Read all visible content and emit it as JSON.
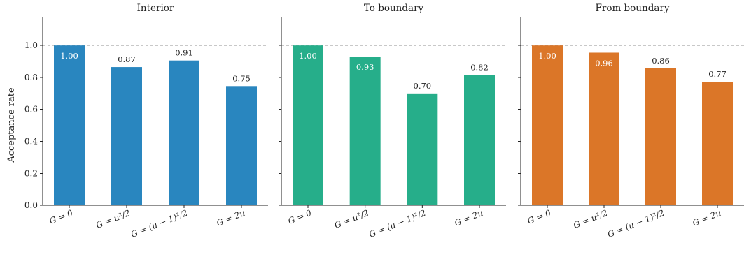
{
  "figure": {
    "ylabel": "Acceptance rate",
    "yticks": [
      "0.0",
      "0.2",
      "0.4",
      "0.6",
      "0.8",
      "1.0"
    ]
  },
  "chart_data": [
    {
      "type": "bar",
      "title": "Interior",
      "categories": [
        "G = 0",
        "G = u²/2",
        "G = (u − 1)²/2",
        "G = 2u"
      ],
      "values": [
        1.0,
        0.865,
        0.906,
        0.746
      ],
      "labels": [
        "1.00",
        "0.87",
        "0.91",
        "0.75"
      ],
      "label_inside": [
        true,
        false,
        false,
        false
      ],
      "color": "#2986bf",
      "ylim": [
        0,
        1.18
      ],
      "reference_line": 1.0
    },
    {
      "type": "bar",
      "title": "To boundary",
      "categories": [
        "G = 0",
        "G = u²/2",
        "G = (u − 1)²/2",
        "G = 2u"
      ],
      "values": [
        1.0,
        0.93,
        0.7,
        0.815
      ],
      "labels": [
        "1.00",
        "0.93",
        "0.70",
        "0.82"
      ],
      "label_inside": [
        true,
        true,
        false,
        false
      ],
      "color": "#26ae8a",
      "ylim": [
        0,
        1.18
      ],
      "reference_line": 1.0
    },
    {
      "type": "bar",
      "title": "From boundary",
      "categories": [
        "G = 0",
        "G = u²/2",
        "G = (u − 1)²/2",
        "G = 2u"
      ],
      "values": [
        1.0,
        0.955,
        0.857,
        0.773
      ],
      "labels": [
        "1.00",
        "0.96",
        "0.86",
        "0.77"
      ],
      "label_inside": [
        true,
        true,
        false,
        false
      ],
      "color": "#db7628",
      "ylim": [
        0,
        1.18
      ],
      "reference_line": 1.0
    }
  ]
}
